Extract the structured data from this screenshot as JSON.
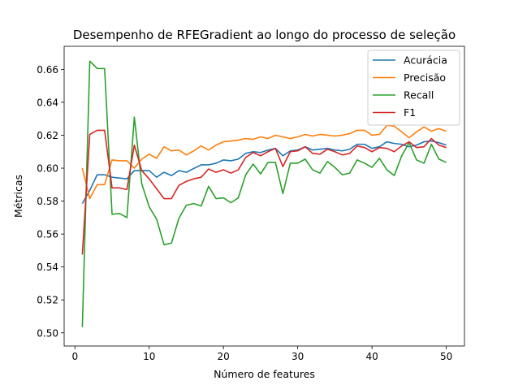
{
  "chart_data": {
    "type": "line",
    "title": "Desempenho de RFEGradient ao longo do processo de seleção",
    "xlabel": "Número de features",
    "ylabel": "Métricas",
    "xlim": [
      -1.45,
      52.45
    ],
    "ylim": [
      0.492,
      0.674
    ],
    "xticks": [
      0,
      10,
      20,
      30,
      40,
      50
    ],
    "yticks": [
      0.5,
      0.52,
      0.54,
      0.56,
      0.58,
      0.6,
      0.62,
      0.64,
      0.66
    ],
    "xtick_labels": [
      "0",
      "10",
      "20",
      "30",
      "40",
      "50"
    ],
    "ytick_labels": [
      "0.50",
      "0.52",
      "0.54",
      "0.56",
      "0.58",
      "0.60",
      "0.62",
      "0.64",
      "0.66"
    ],
    "legend_position": "top-right",
    "x": [
      1,
      2,
      3,
      4,
      5,
      6,
      7,
      8,
      9,
      10,
      11,
      12,
      13,
      14,
      15,
      16,
      17,
      18,
      19,
      20,
      21,
      22,
      23,
      24,
      25,
      26,
      27,
      28,
      29,
      30,
      31,
      32,
      33,
      34,
      35,
      36,
      37,
      38,
      39,
      40,
      41,
      42,
      43,
      44,
      45,
      46,
      47,
      48,
      49,
      50
    ],
    "series": [
      {
        "name": "Acurácia",
        "color": "#1f77b4",
        "values": [
          0.5785,
          0.5865,
          0.596,
          0.596,
          0.5945,
          0.594,
          0.5935,
          0.5985,
          0.5985,
          0.5985,
          0.5945,
          0.5975,
          0.5955,
          0.5985,
          0.5975,
          0.5998,
          0.602,
          0.602,
          0.603,
          0.605,
          0.6045,
          0.6055,
          0.609,
          0.61,
          0.6095,
          0.611,
          0.612,
          0.6075,
          0.6105,
          0.611,
          0.613,
          0.611,
          0.6115,
          0.612,
          0.611,
          0.6105,
          0.6115,
          0.6145,
          0.6145,
          0.612,
          0.613,
          0.616,
          0.615,
          0.6145,
          0.613,
          0.614,
          0.616,
          0.6165,
          0.6155,
          0.614
        ]
      },
      {
        "name": "Precisão",
        "color": "#ff7f0e",
        "values": [
          0.6,
          0.5815,
          0.59,
          0.59,
          0.605,
          0.6045,
          0.6045,
          0.6,
          0.6055,
          0.6085,
          0.606,
          0.613,
          0.6105,
          0.611,
          0.608,
          0.6105,
          0.6135,
          0.611,
          0.614,
          0.616,
          0.6165,
          0.617,
          0.618,
          0.6175,
          0.619,
          0.618,
          0.62,
          0.619,
          0.618,
          0.619,
          0.6205,
          0.6195,
          0.6205,
          0.62,
          0.6195,
          0.62,
          0.621,
          0.623,
          0.623,
          0.62,
          0.6205,
          0.626,
          0.6255,
          0.622,
          0.6185,
          0.622,
          0.625,
          0.6225,
          0.624,
          0.6225
        ]
      },
      {
        "name": "Recall",
        "color": "#2ca02c",
        "values": [
          0.5035,
          0.665,
          0.6605,
          0.6605,
          0.572,
          0.5725,
          0.57,
          0.631,
          0.5905,
          0.5765,
          0.569,
          0.5535,
          0.5545,
          0.5695,
          0.5775,
          0.5785,
          0.577,
          0.589,
          0.5815,
          0.582,
          0.579,
          0.582,
          0.596,
          0.6025,
          0.5965,
          0.6035,
          0.6035,
          0.5845,
          0.603,
          0.603,
          0.6055,
          0.599,
          0.597,
          0.604,
          0.6005,
          0.596,
          0.597,
          0.605,
          0.603,
          0.6005,
          0.606,
          0.599,
          0.5955,
          0.6075,
          0.6155,
          0.605,
          0.603,
          0.6145,
          0.6055,
          0.6035
        ]
      },
      {
        "name": "F1",
        "color": "#d62728",
        "values": [
          0.5475,
          0.6205,
          0.623,
          0.623,
          0.588,
          0.588,
          0.587,
          0.614,
          0.5985,
          0.5935,
          0.5875,
          0.5815,
          0.5815,
          0.5895,
          0.592,
          0.5935,
          0.5945,
          0.5995,
          0.5975,
          0.599,
          0.597,
          0.599,
          0.6065,
          0.6095,
          0.6075,
          0.61,
          0.612,
          0.601,
          0.61,
          0.6105,
          0.613,
          0.609,
          0.6085,
          0.6115,
          0.61,
          0.608,
          0.609,
          0.6135,
          0.6125,
          0.61,
          0.6125,
          0.612,
          0.61,
          0.6135,
          0.616,
          0.6125,
          0.613,
          0.618,
          0.614,
          0.6125
        ]
      }
    ]
  }
}
